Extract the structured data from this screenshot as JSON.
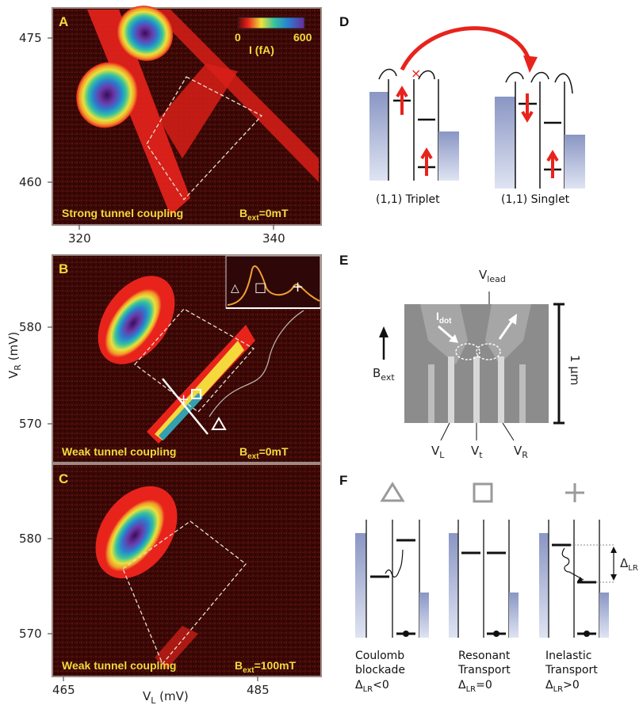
{
  "panels": {
    "A": {
      "letter": "A",
      "caption": "Strong tunnel coupling",
      "field": "B",
      "field_sub": "ext",
      "field_value": "=0mT",
      "x_ticks": [
        "320",
        "340"
      ],
      "y_ticks": [
        "475",
        "460"
      ],
      "colorbar": {
        "min": "0",
        "max": "600",
        "label": "I (fA)"
      }
    },
    "B": {
      "letter": "B",
      "caption": "Weak tunnel coupling",
      "field": "B",
      "field_sub": "ext",
      "field_value": "=0mT",
      "y_ticks": [
        "580",
        "570"
      ],
      "inset_markers": [
        "△",
        "□",
        "+"
      ]
    },
    "C": {
      "letter": "C",
      "caption": "Weak tunnel coupling",
      "field": "B",
      "field_sub": "ext",
      "field_value": "=100mT",
      "x_ticks": [
        "465",
        "485"
      ],
      "y_ticks": [
        "580",
        "570"
      ]
    },
    "D": {
      "letter": "D",
      "triplet_label": "(1,1) Triplet",
      "singlet_label": "(1,1) Singlet"
    },
    "E": {
      "letter": "E",
      "v_lead": "V",
      "v_lead_sub": "lead",
      "i_dot": "I",
      "i_dot_sub": "dot",
      "b_ext": "B",
      "b_ext_sub": "ext",
      "scale": "1 μm",
      "v_l": "V",
      "v_l_sub": "L",
      "v_t": "V",
      "v_t_sub": "t",
      "v_r": "V",
      "v_r_sub": "R"
    },
    "F": {
      "letter": "F",
      "delta": "Δ",
      "delta_sub": "LR",
      "cases": [
        {
          "symbol": "△",
          "line1": "Coulomb",
          "line2": "blockade",
          "cond": "<0"
        },
        {
          "symbol": "□",
          "line1": "Resonant",
          "line2": "Transport",
          "cond": "=0"
        },
        {
          "symbol": "+",
          "line1": "Inelastic",
          "line2": "Transport",
          "cond": ">0"
        }
      ]
    }
  },
  "axes": {
    "y_label": "V",
    "y_label_sub": "R",
    "y_label_unit": " (mV)",
    "x_label": "V",
    "x_label_sub": "L",
    "x_label_unit": " (mV)"
  },
  "colors": {
    "map_bg": "#3a0806",
    "red": "#e8231c",
    "yellow": "#f4d93c",
    "frame": "#9c8a84",
    "lead_fill": "#9aa6cc"
  }
}
